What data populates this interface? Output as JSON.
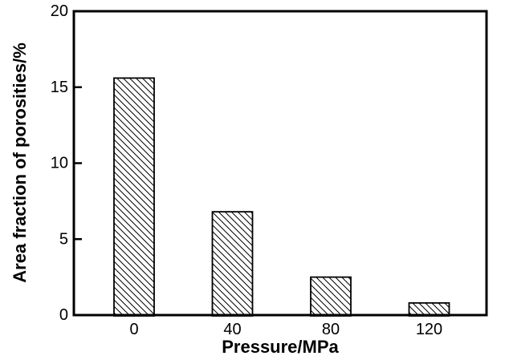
{
  "chart_data": {
    "type": "bar",
    "title": "",
    "categories": [
      "0",
      "40",
      "80",
      "120"
    ],
    "values": [
      15.6,
      6.8,
      2.5,
      0.8
    ],
    "xlabel": "Pressure/MPa",
    "ylabel": "Area fraction of porosities/%",
    "ylim": [
      0,
      20
    ],
    "yticks": [
      0,
      5,
      10,
      15,
      20
    ],
    "ytick_labels": [
      "0",
      "5",
      "10",
      "15",
      "20"
    ],
    "grid": false,
    "legend": "none",
    "bar_style": {
      "fill": "#ffffff",
      "hatch": "diagonal-backslash",
      "hatch_color": "#000000",
      "border_color": "#000000"
    },
    "colors": {
      "axis": "#000000",
      "text": "#000000",
      "background": "#ffffff"
    }
  }
}
